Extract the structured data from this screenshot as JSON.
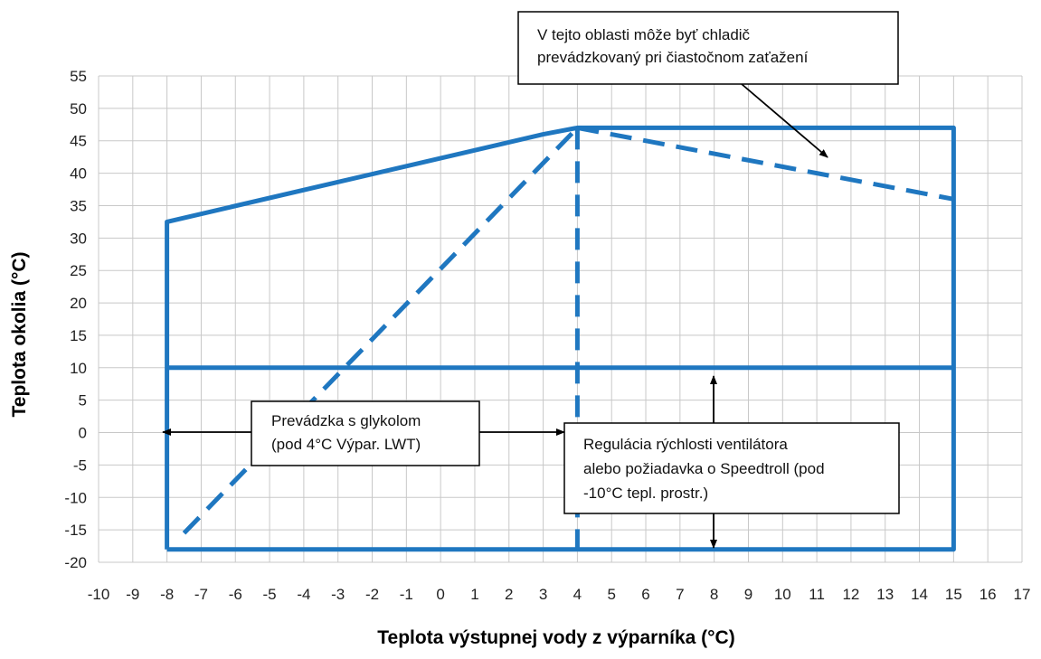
{
  "chart_data": {
    "type": "line",
    "xlabel": "Teplota výstupnej vody z výparníka (°C)",
    "ylabel": "Teplota okolia (°C)",
    "xlim": [
      -10,
      17
    ],
    "ylim": [
      -20,
      55
    ],
    "x_ticks": [
      -10,
      -9,
      -8,
      -7,
      -6,
      -5,
      -4,
      -3,
      -2,
      -1,
      0,
      1,
      2,
      3,
      4,
      5,
      6,
      7,
      8,
      9,
      10,
      11,
      12,
      13,
      14,
      15,
      16,
      17
    ],
    "y_ticks": [
      55,
      50,
      45,
      40,
      35,
      30,
      25,
      20,
      15,
      10,
      5,
      0,
      -5,
      -10,
      -15,
      -20
    ],
    "grid": true,
    "line_color": "#1f77c0",
    "series": [
      {
        "style": "solid",
        "points": [
          [
            -8,
            -18
          ],
          [
            -8,
            32.5
          ],
          [
            3,
            46
          ],
          [
            4,
            47
          ],
          [
            15,
            47
          ],
          [
            15,
            -18
          ],
          [
            -8,
            -18
          ]
        ]
      },
      {
        "style": "solid",
        "points": [
          [
            -8,
            10
          ],
          [
            15,
            10
          ]
        ]
      },
      {
        "style": "dashed",
        "points": [
          [
            -7.5,
            -15.5
          ],
          [
            4,
            47
          ]
        ]
      },
      {
        "style": "dashed",
        "points": [
          [
            4,
            47
          ],
          [
            4,
            -18
          ]
        ]
      },
      {
        "style": "dashed",
        "points": [
          [
            4,
            47
          ],
          [
            15,
            36
          ]
        ]
      }
    ],
    "annotations": [
      {
        "id": "partial",
        "lines": [
          "V  tejto  oblasti  môže  byť  chladič",
          "prevádzkovaný pri čiastočnom zaťažení"
        ]
      },
      {
        "id": "glycol",
        "lines": [
          "Prevádzka s glykolom",
          "(pod 4°C Výpar. LWT)"
        ]
      },
      {
        "id": "fan",
        "lines": [
          "Regulácia  rýchlosti  ventilátora",
          "alebo požiadavka o Speedtroll (pod",
          "-10°C tepl. prostr.)"
        ]
      }
    ]
  }
}
